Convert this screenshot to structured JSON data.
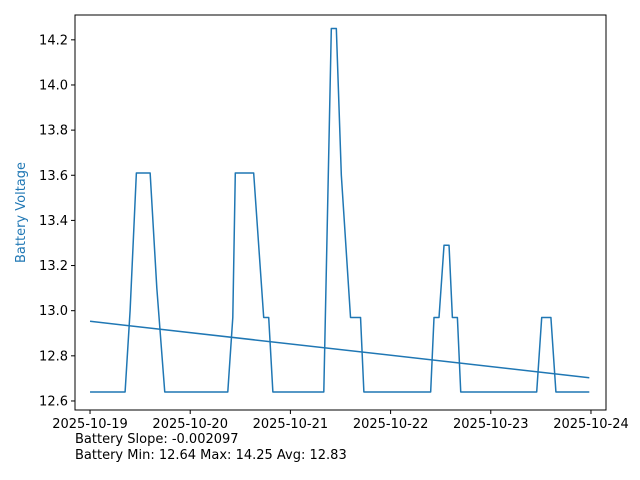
{
  "chart_data": {
    "type": "line",
    "ylabel": "Battery Voltage",
    "ylim": [
      12.56,
      14.31
    ],
    "xlim": [
      "2025-10-18T20:24",
      "2025-10-24T03:36"
    ],
    "x_ticks": [
      "2025-10-19",
      "2025-10-20",
      "2025-10-21",
      "2025-10-22",
      "2025-10-23",
      "2025-10-24"
    ],
    "y_ticks": [
      "12.6",
      "12.8",
      "13.0",
      "13.2",
      "13.4",
      "13.6",
      "13.8",
      "14.0",
      "14.2"
    ],
    "grid": false,
    "colors": {
      "line": "#1f77b4",
      "ylabel": "#1f77b4",
      "axes": "#000000"
    },
    "series": [
      {
        "values": [
          [
            "2025-10-19T00:00",
            12.64
          ],
          [
            "2025-10-19T08:24",
            12.64
          ],
          [
            "2025-10-19T09:36",
            13.0
          ],
          [
            "2025-10-19T11:06",
            13.61
          ],
          [
            "2025-10-19T14:24",
            13.61
          ],
          [
            "2025-10-19T16:00",
            13.1
          ],
          [
            "2025-10-19T17:54",
            12.64
          ],
          [
            "2025-10-20T09:00",
            12.64
          ],
          [
            "2025-10-20T10:12",
            12.97
          ],
          [
            "2025-10-20T10:48",
            13.61
          ],
          [
            "2025-10-20T15:12",
            13.61
          ],
          [
            "2025-10-20T17:36",
            12.97
          ],
          [
            "2025-10-20T18:48",
            12.97
          ],
          [
            "2025-10-20T19:48",
            12.64
          ],
          [
            "2025-10-21T08:00",
            12.64
          ],
          [
            "2025-10-21T09:48",
            14.25
          ],
          [
            "2025-10-21T11:00",
            14.25
          ],
          [
            "2025-10-21T12:12",
            13.6
          ],
          [
            "2025-10-21T14:24",
            12.97
          ],
          [
            "2025-10-21T16:48",
            12.97
          ],
          [
            "2025-10-21T17:36",
            12.64
          ],
          [
            "2025-10-22T09:36",
            12.64
          ],
          [
            "2025-10-22T10:24",
            12.97
          ],
          [
            "2025-10-22T11:36",
            12.97
          ],
          [
            "2025-10-22T12:48",
            13.29
          ],
          [
            "2025-10-22T14:00",
            13.29
          ],
          [
            "2025-10-22T14:48",
            12.97
          ],
          [
            "2025-10-22T16:00",
            12.97
          ],
          [
            "2025-10-22T16:48",
            12.64
          ],
          [
            "2025-10-23T11:00",
            12.64
          ],
          [
            "2025-10-23T12:12",
            12.97
          ],
          [
            "2025-10-23T14:24",
            12.97
          ],
          [
            "2025-10-23T15:36",
            12.64
          ],
          [
            "2025-10-23T23:36",
            12.64
          ]
        ]
      },
      {
        "values": [
          [
            "2025-10-19T00:00",
            12.953
          ],
          [
            "2025-10-23T23:36",
            12.703
          ]
        ]
      }
    ]
  },
  "stats": {
    "slope_line": "Battery Slope: -0.002097",
    "range_line": "Battery Min: 12.64 Max: 14.25 Avg: 12.83"
  }
}
